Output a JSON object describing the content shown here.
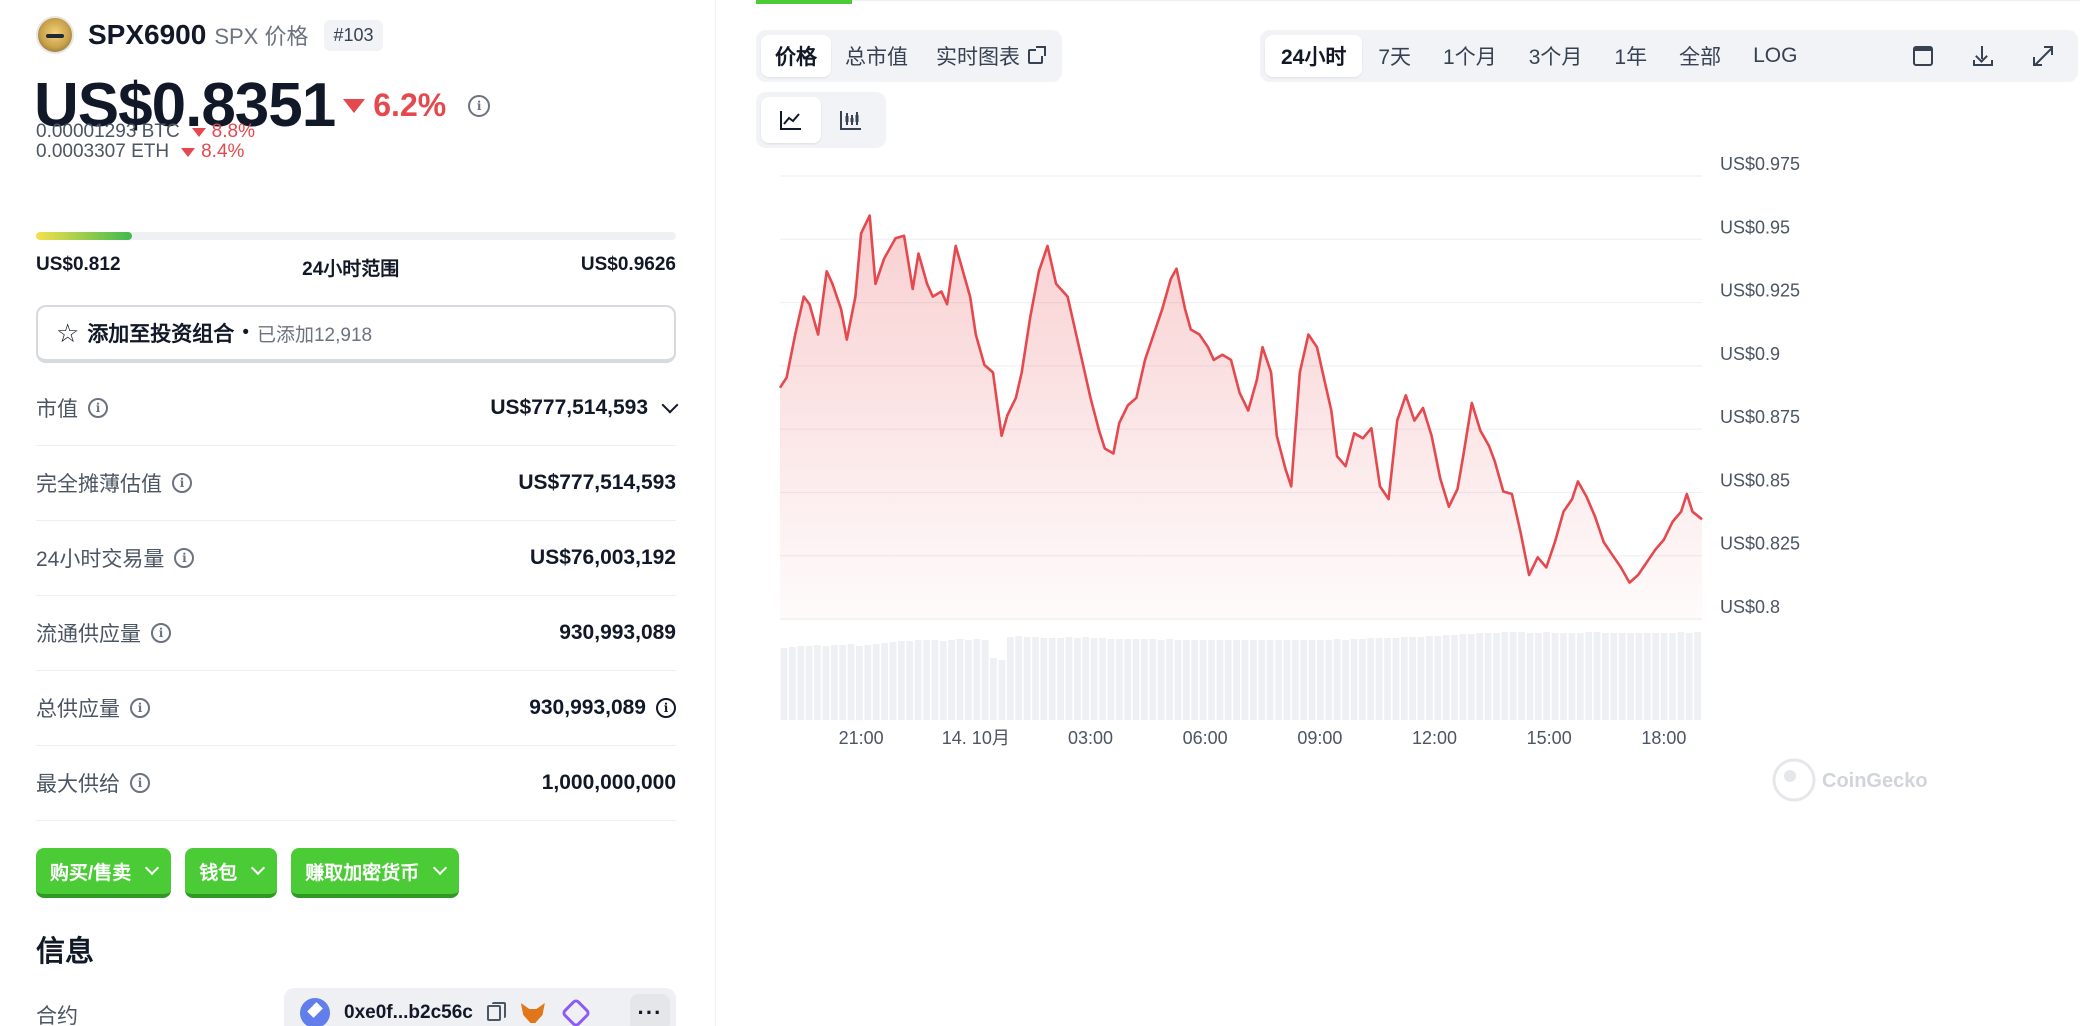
{
  "coin": {
    "name": "SPX6900",
    "subtitle": "SPX 价格",
    "rank": "#103",
    "price": "US$0.8351",
    "change_24h": "6.2%",
    "btc_price": "0.00001293 BTC",
    "btc_change": "8.8%",
    "eth_price": "0.0003307 ETH",
    "eth_change": "8.4%"
  },
  "range": {
    "low": "US$0.812",
    "label": "24小时范围",
    "high": "US$0.9626",
    "fill_fraction": 0.15
  },
  "portfolio": {
    "button_label": "添加至投资组合",
    "separator": "•",
    "added_text": "已添加12,918"
  },
  "stats": [
    {
      "label": "市值",
      "value": "US$777,514,593",
      "has_chevron": true,
      "value_info": false
    },
    {
      "label": "完全摊薄估值",
      "value": "US$777,514,593",
      "has_chevron": false,
      "value_info": false
    },
    {
      "label": "24小时交易量",
      "value": "US$76,003,192",
      "has_chevron": false,
      "value_info": false
    },
    {
      "label": "流通供应量",
      "value": "930,993,089",
      "has_chevron": false,
      "value_info": false
    },
    {
      "label": "总供应量",
      "value": "930,993,089",
      "has_chevron": false,
      "value_info": true
    },
    {
      "label": "最大供给",
      "value": "1,000,000,000",
      "has_chevron": false,
      "value_info": false
    }
  ],
  "actions": {
    "buy_sell": "购买/售卖",
    "wallet": "钱包",
    "earn": "赚取加密货币"
  },
  "info": {
    "title": "信息",
    "contract_label": "合约",
    "contract_address": "0xe0f...b2c56c",
    "more": "···"
  },
  "tabs": {
    "price": "价格",
    "market_cap": "总市值",
    "live_chart": "实时图表"
  },
  "ranges": [
    "24小时",
    "7天",
    "1个月",
    "3个月",
    "1年",
    "全部",
    "LOG"
  ],
  "active_range": "24小时",
  "icons": {
    "calendar": "calendar-icon",
    "download": "download-icon",
    "expand": "expand-icon",
    "line_chart": "line-chart-icon",
    "candlestick": "candlestick-icon"
  },
  "watermark": "CoinGecko",
  "colors": {
    "up_green": "#4bcc37",
    "down_red": "#e5484d",
    "line": "#e5484d"
  },
  "chart_data": {
    "type": "line",
    "ylim": [
      0.8,
      0.975
    ],
    "y_ticks": [
      "US$0.975",
      "US$0.95",
      "US$0.925",
      "US$0.9",
      "US$0.875",
      "US$0.85",
      "US$0.825",
      "US$0.8"
    ],
    "y_tick_values": [
      0.975,
      0.95,
      0.925,
      0.9,
      0.875,
      0.85,
      0.825,
      0.8
    ],
    "x_ticks": [
      "21:00",
      "14. 10月",
      "03:00",
      "06:00",
      "09:00",
      "12:00",
      "15:00",
      "18:00"
    ],
    "x_tick_hours": [
      3,
      7,
      11,
      15,
      19,
      23,
      27,
      31
    ],
    "x_range_hours": [
      0.17,
      32.33
    ],
    "grid": true,
    "legend": "none",
    "series": [
      {
        "x": [
          0.17,
          0.4,
          0.7,
          1.0,
          1.2,
          1.5,
          1.8,
          2.0,
          2.3,
          2.5,
          2.8,
          3.0,
          3.3,
          3.5,
          3.8,
          4.2,
          4.5,
          4.8,
          5.0,
          5.3,
          5.5,
          5.8,
          6.0,
          6.3,
          6.5,
          6.8,
          7.0,
          7.3,
          7.6,
          7.9,
          8.1,
          8.4,
          8.6,
          8.9,
          9.2,
          9.5,
          9.8,
          10.2,
          10.5,
          10.8,
          11.0,
          11.3,
          11.5,
          11.8,
          12.0,
          12.3,
          12.6,
          12.9,
          13.2,
          13.5,
          13.8,
          14.0,
          14.3,
          14.5,
          14.8,
          15.1,
          15.3,
          15.6,
          15.9,
          16.2,
          16.5,
          16.8,
          17.0,
          17.3,
          17.5,
          17.8,
          18.0,
          18.3,
          18.6,
          18.9,
          19.1,
          19.4,
          19.6,
          19.9,
          20.2,
          20.5,
          20.8,
          21.1,
          21.4,
          21.7,
          22.0,
          22.3,
          22.6,
          22.9,
          23.2,
          23.5,
          23.8,
          24.0,
          24.3,
          24.6,
          24.9,
          25.1,
          25.4,
          25.7,
          26.0,
          26.3,
          26.6,
          26.9,
          27.2,
          27.5,
          27.8,
          28.0,
          28.3,
          28.6,
          28.9,
          29.2,
          29.5,
          29.8,
          30.1,
          30.4,
          30.7,
          31.0,
          31.3,
          31.6,
          31.8,
          32.0,
          32.33
        ],
        "y": [
          0.889,
          0.893,
          0.91,
          0.925,
          0.922,
          0.91,
          0.935,
          0.93,
          0.92,
          0.908,
          0.925,
          0.95,
          0.957,
          0.93,
          0.94,
          0.948,
          0.949,
          0.928,
          0.942,
          0.93,
          0.925,
          0.927,
          0.922,
          0.945,
          0.937,
          0.925,
          0.91,
          0.898,
          0.895,
          0.87,
          0.878,
          0.885,
          0.895,
          0.917,
          0.935,
          0.945,
          0.93,
          0.925,
          0.91,
          0.895,
          0.885,
          0.872,
          0.865,
          0.863,
          0.875,
          0.882,
          0.885,
          0.9,
          0.91,
          0.92,
          0.932,
          0.936,
          0.92,
          0.912,
          0.91,
          0.905,
          0.9,
          0.902,
          0.9,
          0.887,
          0.88,
          0.892,
          0.905,
          0.895,
          0.87,
          0.857,
          0.85,
          0.895,
          0.91,
          0.905,
          0.895,
          0.88,
          0.862,
          0.858,
          0.871,
          0.869,
          0.873,
          0.85,
          0.845,
          0.876,
          0.886,
          0.876,
          0.881,
          0.87,
          0.853,
          0.842,
          0.849,
          0.862,
          0.883,
          0.872,
          0.866,
          0.86,
          0.848,
          0.847,
          0.832,
          0.815,
          0.822,
          0.818,
          0.828,
          0.84,
          0.845,
          0.852,
          0.846,
          0.838,
          0.828,
          0.823,
          0.818,
          0.812,
          0.815,
          0.82,
          0.825,
          0.829,
          0.836,
          0.84,
          0.847,
          0.84,
          0.837
        ]
      }
    ],
    "volume": {
      "relative": [
        0.72,
        0.73,
        0.74,
        0.74,
        0.75,
        0.74,
        0.75,
        0.75,
        0.76,
        0.74,
        0.75,
        0.76,
        0.77,
        0.78,
        0.79,
        0.79,
        0.8,
        0.8,
        0.8,
        0.79,
        0.8,
        0.81,
        0.8,
        0.81,
        0.8,
        0.62,
        0.6,
        0.83,
        0.84,
        0.83,
        0.83,
        0.82,
        0.82,
        0.82,
        0.83,
        0.82,
        0.83,
        0.82,
        0.82,
        0.81,
        0.81,
        0.81,
        0.81,
        0.81,
        0.81,
        0.8,
        0.81,
        0.8,
        0.8,
        0.8,
        0.8,
        0.8,
        0.8,
        0.8,
        0.8,
        0.8,
        0.8,
        0.8,
        0.8,
        0.8,
        0.8,
        0.8,
        0.8,
        0.8,
        0.8,
        0.8,
        0.81,
        0.8,
        0.81,
        0.81,
        0.82,
        0.82,
        0.82,
        0.82,
        0.83,
        0.83,
        0.83,
        0.84,
        0.84,
        0.85,
        0.85,
        0.86,
        0.86,
        0.87,
        0.87,
        0.87,
        0.88,
        0.88,
        0.88,
        0.87,
        0.87,
        0.88,
        0.87,
        0.87,
        0.87,
        0.87,
        0.88,
        0.88,
        0.87,
        0.87,
        0.87,
        0.87,
        0.87,
        0.87,
        0.87,
        0.87,
        0.87,
        0.88,
        0.87,
        0.88
      ]
    }
  }
}
